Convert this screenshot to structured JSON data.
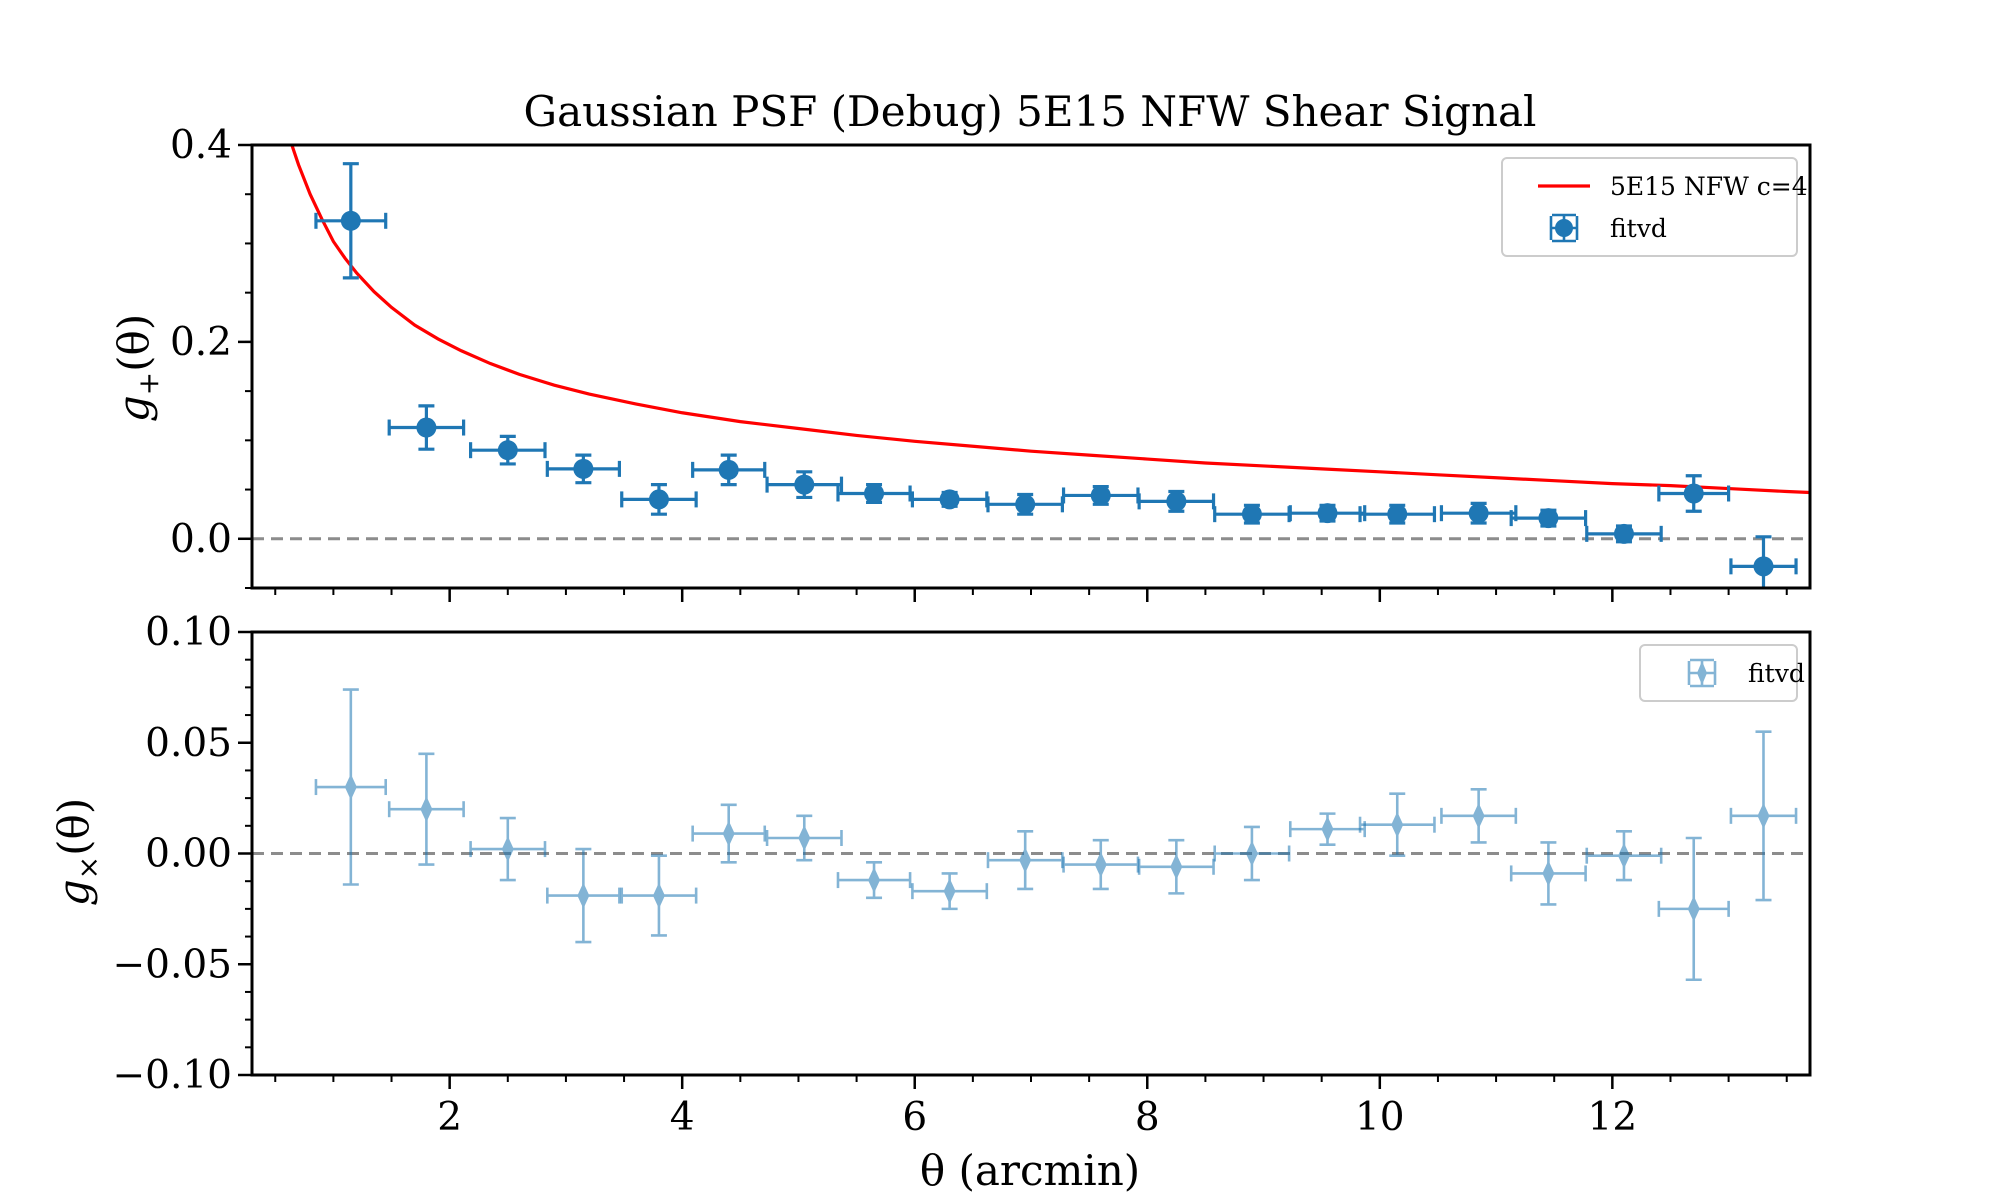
{
  "chart_data": [
    {
      "type": "scatter",
      "title": "Gaussian PSF (Debug) 5E15 NFW Shear Signal",
      "ylabel_var": "g",
      "ylabel_sub": "+",
      "ylabel_arg": "(θ)",
      "ylim": [
        -0.05,
        0.4
      ],
      "xlim": [
        0.3,
        13.7
      ],
      "yticks": [
        0.0,
        0.2,
        0.4
      ],
      "ytick_labels": [
        "0.0",
        "0.2",
        "0.4"
      ],
      "legend_position": "top-right",
      "zero_line": true,
      "series": [
        {
          "name": "5E15 NFW c=4",
          "kind": "line",
          "color": "#ff0000",
          "x": [
            0.6,
            0.7,
            0.8,
            0.9,
            1.0,
            1.1,
            1.2,
            1.35,
            1.5,
            1.7,
            1.9,
            2.1,
            2.35,
            2.6,
            2.9,
            3.2,
            3.6,
            4.0,
            4.5,
            5.0,
            5.5,
            6.0,
            6.5,
            7.0,
            7.5,
            8.0,
            8.5,
            9.0,
            9.5,
            10.0,
            10.5,
            11.0,
            11.5,
            12.0,
            12.5,
            13.0,
            13.5,
            13.7
          ],
          "y": [
            0.415,
            0.38,
            0.35,
            0.325,
            0.302,
            0.285,
            0.27,
            0.251,
            0.235,
            0.217,
            0.203,
            0.191,
            0.178,
            0.167,
            0.156,
            0.147,
            0.137,
            0.128,
            0.119,
            0.112,
            0.105,
            0.099,
            0.094,
            0.089,
            0.085,
            0.081,
            0.077,
            0.074,
            0.071,
            0.068,
            0.065,
            0.062,
            0.059,
            0.056,
            0.054,
            0.051,
            0.048,
            0.047
          ]
        },
        {
          "name": "fitvd",
          "kind": "errorbar",
          "marker": "circle",
          "color": "#1f77b4",
          "x": [
            1.15,
            1.8,
            2.5,
            3.15,
            3.8,
            4.4,
            5.05,
            5.65,
            6.3,
            6.95,
            7.6,
            8.25,
            8.9,
            9.55,
            10.15,
            10.85,
            11.45,
            12.1,
            12.7,
            13.3
          ],
          "xerr": [
            0.3,
            0.32,
            0.32,
            0.31,
            0.32,
            0.31,
            0.32,
            0.31,
            0.32,
            0.32,
            0.32,
            0.32,
            0.32,
            0.32,
            0.32,
            0.32,
            0.32,
            0.32,
            0.3,
            0.28
          ],
          "y": [
            0.323,
            0.113,
            0.09,
            0.071,
            0.04,
            0.07,
            0.055,
            0.046,
            0.04,
            0.035,
            0.044,
            0.038,
            0.025,
            0.026,
            0.025,
            0.026,
            0.021,
            0.005,
            0.046,
            -0.028
          ],
          "yerr": [
            0.058,
            0.022,
            0.014,
            0.014,
            0.015,
            0.015,
            0.013,
            0.009,
            0.007,
            0.01,
            0.009,
            0.01,
            0.009,
            0.008,
            0.009,
            0.01,
            0.008,
            0.008,
            0.018,
            0.03
          ]
        }
      ]
    },
    {
      "type": "scatter",
      "xlabel": "θ (arcmin)",
      "ylabel_var": "g",
      "ylabel_sub": "×",
      "ylabel_arg": "(θ)",
      "ylim": [
        -0.1,
        0.1
      ],
      "xlim": [
        0.3,
        13.7
      ],
      "xticks": [
        2,
        4,
        6,
        8,
        10,
        12
      ],
      "xtick_labels": [
        "2",
        "4",
        "6",
        "8",
        "10",
        "12"
      ],
      "yticks": [
        -0.1,
        -0.05,
        0.0,
        0.05,
        0.1
      ],
      "ytick_labels": [
        "−0.10",
        "−0.05",
        "0.00",
        "0.05",
        "0.10"
      ],
      "legend_position": "top-right",
      "zero_line": true,
      "series": [
        {
          "name": "fitvd",
          "kind": "errorbar",
          "marker": "thin_diamond",
          "color": "#1f77b4",
          "alpha": 0.55,
          "x": [
            1.15,
            1.8,
            2.5,
            3.15,
            3.8,
            4.4,
            5.05,
            5.65,
            6.3,
            6.95,
            7.6,
            8.25,
            8.9,
            9.55,
            10.15,
            10.85,
            11.45,
            12.1,
            12.7,
            13.3
          ],
          "xerr": [
            0.3,
            0.32,
            0.32,
            0.31,
            0.32,
            0.31,
            0.32,
            0.31,
            0.32,
            0.32,
            0.32,
            0.32,
            0.32,
            0.32,
            0.32,
            0.32,
            0.32,
            0.32,
            0.3,
            0.28
          ],
          "y": [
            0.03,
            0.02,
            0.002,
            -0.019,
            -0.019,
            0.009,
            0.007,
            -0.012,
            -0.017,
            -0.003,
            -0.005,
            -0.006,
            0.0,
            0.011,
            0.013,
            0.017,
            -0.009,
            -0.001,
            -0.025,
            0.017
          ],
          "yerr": [
            0.044,
            0.025,
            0.014,
            0.021,
            0.018,
            0.013,
            0.01,
            0.008,
            0.008,
            0.013,
            0.011,
            0.012,
            0.012,
            0.007,
            0.014,
            0.012,
            0.014,
            0.011,
            0.032,
            0.038
          ]
        }
      ]
    }
  ]
}
